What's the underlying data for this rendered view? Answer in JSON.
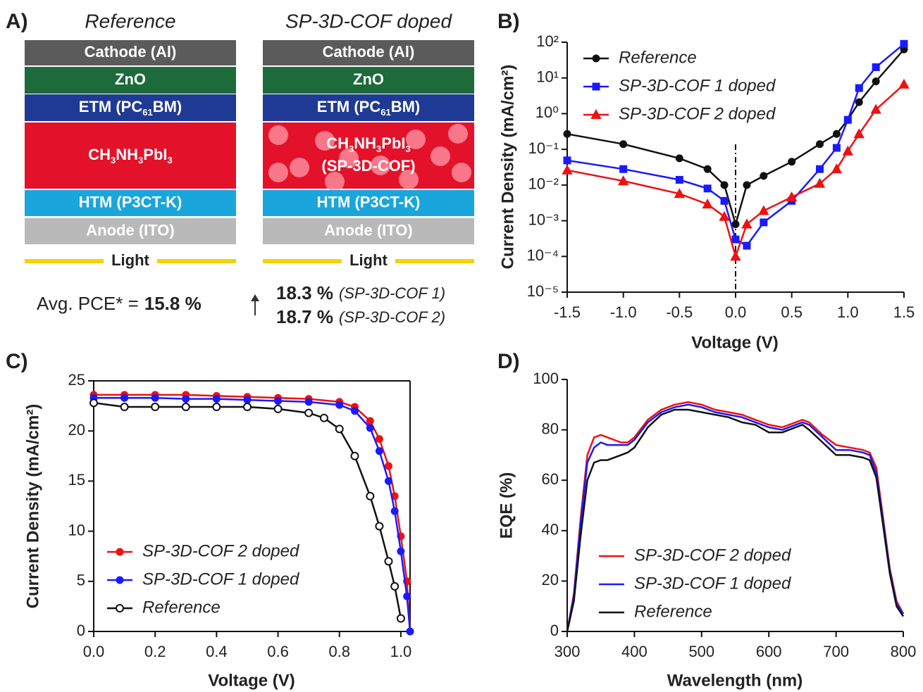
{
  "panel_labels": [
    "A)",
    "B)",
    "C)",
    "D)"
  ],
  "device_diagram": {
    "stacks": [
      {
        "title": "Reference",
        "layers": [
          {
            "color": "#5b5b5b",
            "lines": [
              [
                {
                  "text": "Cathode (Al)"
                }
              ]
            ]
          },
          {
            "color": "#1d6b3a",
            "lines": [
              [
                {
                  "text": "ZnO"
                }
              ]
            ]
          },
          {
            "color": "#1f3a94",
            "lines": [
              [
                {
                  "text": "ETM (PC"
                },
                {
                  "sub": "61"
                },
                {
                  "text": "BM)"
                }
              ]
            ]
          },
          {
            "color": "#e3122a",
            "lines": [
              [
                {
                  "text": "CH"
                },
                {
                  "sub": "3"
                },
                {
                  "text": "NH"
                },
                {
                  "sub": "3"
                },
                {
                  "text": "PbI"
                },
                {
                  "sub": "3"
                }
              ]
            ]
          },
          {
            "color": "#1aa6dd",
            "lines": [
              [
                {
                  "text": "HTM (P3CT-K)"
                }
              ]
            ]
          },
          {
            "color": "#b9b9b9",
            "lines": [
              [
                {
                  "text": "Anode (ITO)"
                }
              ]
            ]
          }
        ],
        "light": {
          "text": "Light",
          "color": "#f7d200",
          "text_color": "#ff7a1a"
        }
      },
      {
        "title": "SP-3D-COF doped",
        "layers": [
          {
            "color": "#5b5b5b",
            "lines": [
              [
                {
                  "text": "Cathode (Al)"
                }
              ]
            ]
          },
          {
            "color": "#1d6b3a",
            "lines": [
              [
                {
                  "text": "ZnO"
                }
              ]
            ]
          },
          {
            "color": "#1f3a94",
            "lines": [
              [
                {
                  "text": "ETM (PC"
                },
                {
                  "sub": "61"
                },
                {
                  "text": "BM)"
                }
              ]
            ]
          },
          {
            "color": "#e3122a",
            "lines": [
              [
                {
                  "text": "CH"
                },
                {
                  "sub": "3"
                },
                {
                  "text": "NH"
                },
                {
                  "sub": "3"
                },
                {
                  "text": "PbI"
                },
                {
                  "sub": "3"
                }
              ],
              [
                {
                  "text": "(SP-3D-COF)"
                }
              ]
            ]
          },
          {
            "color": "#1aa6dd",
            "lines": [
              [
                {
                  "text": "HTM (P3CT-K)"
                }
              ]
            ]
          },
          {
            "color": "#b9b9b9",
            "lines": [
              [
                {
                  "text": "Anode (ITO)"
                }
              ]
            ]
          }
        ],
        "light": {
          "text": "Light",
          "color": "#f7d200",
          "text_color": "#ff7a1a"
        }
      }
    ],
    "pce": {
      "label": "Avg. PCE* =",
      "value": "15.8 %",
      "doped": [
        {
          "value": "18.3 %",
          "name": "(SP-3D-COF 1)"
        },
        {
          "value": "18.7 %",
          "name": "(SP-3D-COF 2)"
        }
      ]
    }
  },
  "chart_data": [
    {
      "type": "line",
      "log_y": true,
      "legend": "upper left",
      "xlabel": "Voltage (V)",
      "ylabel": "Current Density (mA/cm²)",
      "xlim": [
        -1.5,
        1.5
      ],
      "xticks": [
        -1.5,
        {
          "value": -1,
          "label": "-1.0"
        },
        -0.5,
        {
          "value": 0,
          "label": "0.0"
        },
        0.5,
        {
          "value": 1,
          "label": "1.0"
        },
        1.5
      ],
      "ylim": [
        1e-05,
        100
      ],
      "yticks": [
        {
          "value": 1e-05,
          "label": "10⁻⁵"
        },
        {
          "value": 0.0001,
          "label": "10⁻⁴"
        },
        {
          "value": 0.001,
          "label": "10⁻³"
        },
        {
          "value": 0.01,
          "label": "10⁻²"
        },
        {
          "value": 0.1,
          "label": "10⁻¹"
        },
        {
          "value": 1,
          "label": "10⁰"
        },
        {
          "value": 10,
          "label": "10¹"
        },
        {
          "value": 100,
          "label": "10²"
        }
      ],
      "series": [
        {
          "name": "Reference",
          "color": "#111111",
          "marker": "circle",
          "x": [
            -1.5,
            -1,
            -0.5,
            -0.25,
            -0.1,
            0,
            0.1,
            0.25,
            0.5,
            0.75,
            0.9,
            1,
            1.1,
            1.25,
            1.5
          ],
          "values": [
            0.27,
            0.14,
            0.056,
            0.028,
            0.01,
            0.0008,
            0.01,
            0.018,
            0.045,
            0.14,
            0.27,
            0.67,
            2.1,
            8,
            63
          ]
        },
        {
          "name": "SP-3D-COF 1 doped",
          "color": "#1a1aff",
          "marker": "square",
          "x": [
            -1.5,
            -1,
            -0.5,
            -0.25,
            -0.1,
            0,
            0.1,
            0.25,
            0.5,
            0.75,
            0.9,
            1,
            1.1,
            1.25,
            1.5
          ],
          "values": [
            0.049,
            0.028,
            0.014,
            0.008,
            0.0036,
            0.0003,
            0.0002,
            0.0009,
            0.0036,
            0.028,
            0.11,
            0.67,
            5.2,
            20,
            90
          ]
        },
        {
          "name": "SP-3D-COF 2 doped",
          "color": "#ee1111",
          "marker": "triangle",
          "x": [
            -1.5,
            -1,
            -0.5,
            -0.25,
            -0.1,
            0,
            0.1,
            0.25,
            0.5,
            0.75,
            0.9,
            1,
            1.1,
            1.25,
            1.5
          ],
          "values": [
            0.026,
            0.013,
            0.0057,
            0.0029,
            0.0013,
            0.0001,
            0.0008,
            0.0019,
            0.0046,
            0.011,
            0.028,
            0.089,
            0.27,
            1.3,
            6.6
          ]
        }
      ]
    },
    {
      "type": "line",
      "frame": true,
      "legend": "lower left",
      "xlabel": "Voltage (V)",
      "ylabel": "Current Density (mA/cm²)",
      "xlim": [
        0,
        1.03
      ],
      "xticks": [
        {
          "value": 0,
          "label": "0.0"
        },
        0.2,
        0.4,
        0.6,
        0.8,
        {
          "value": 1,
          "label": "1.0"
        }
      ],
      "ylim": [
        0,
        25
      ],
      "yticks": [
        0,
        5,
        10,
        15,
        20,
        25
      ],
      "series": [
        {
          "name": "SP-3D-COF 2 doped",
          "color": "#ee1111",
          "marker": "circle",
          "x": [
            0,
            0.1,
            0.2,
            0.3,
            0.4,
            0.5,
            0.6,
            0.7,
            0.8,
            0.85,
            0.9,
            0.93,
            0.96,
            0.98,
            1,
            1.02,
            1.03
          ],
          "values": [
            23.6,
            23.6,
            23.6,
            23.6,
            23.5,
            23.4,
            23.3,
            23.2,
            22.9,
            22.4,
            21,
            19.2,
            16.5,
            13.5,
            9.5,
            5,
            0
          ]
        },
        {
          "name": "SP-3D-COF 1 doped",
          "color": "#1a1aff",
          "marker": "circle",
          "x": [
            0,
            0.1,
            0.2,
            0.3,
            0.4,
            0.5,
            0.6,
            0.7,
            0.8,
            0.85,
            0.9,
            0.93,
            0.96,
            0.98,
            1,
            1.02,
            1.03
          ],
          "values": [
            23.3,
            23.3,
            23.3,
            23.2,
            23.2,
            23.1,
            23,
            22.9,
            22.6,
            22,
            20.3,
            18,
            15,
            12,
            8,
            3.5,
            0
          ]
        },
        {
          "name": "Reference",
          "color": "#111111",
          "marker": "circle",
          "marker_fill": "open",
          "x": [
            0,
            0.1,
            0.2,
            0.3,
            0.4,
            0.5,
            0.6,
            0.7,
            0.75,
            0.8,
            0.85,
            0.9,
            0.93,
            0.96,
            0.98,
            1
          ],
          "values": [
            22.8,
            22.4,
            22.4,
            22.4,
            22.4,
            22.4,
            22.2,
            21.8,
            21.3,
            20.2,
            17.5,
            13.5,
            10.5,
            7,
            4.5,
            1.3
          ]
        }
      ]
    },
    {
      "type": "line",
      "legend": "lower left",
      "xlabel": "Wavelength (nm)",
      "ylabel": "EQE (%)",
      "xlim": [
        300,
        800
      ],
      "xticks": [
        300,
        400,
        500,
        600,
        700,
        800
      ],
      "ylim": [
        0,
        100
      ],
      "yticks": [
        0,
        20,
        40,
        60,
        80,
        100
      ],
      "series": [
        {
          "name": "SP-3D-COF 2 doped",
          "color": "#ee1111",
          "x": [
            300,
            310,
            320,
            330,
            340,
            350,
            360,
            380,
            390,
            400,
            420,
            440,
            460,
            480,
            500,
            520,
            540,
            560,
            580,
            600,
            620,
            640,
            650,
            660,
            680,
            700,
            720,
            740,
            750,
            760,
            770,
            780,
            790,
            800
          ],
          "values": [
            0,
            15,
            45,
            70,
            77,
            78,
            77,
            75,
            75,
            77,
            84,
            88,
            90,
            91,
            90,
            88,
            87,
            86,
            84,
            82,
            81,
            83,
            84,
            83,
            78,
            74,
            73,
            72,
            71,
            65,
            45,
            25,
            12,
            7
          ]
        },
        {
          "name": "SP-3D-COF 1 doped",
          "color": "#1a1aff",
          "x": [
            300,
            310,
            320,
            330,
            340,
            350,
            360,
            380,
            390,
            400,
            420,
            440,
            460,
            480,
            500,
            520,
            540,
            560,
            580,
            600,
            620,
            640,
            650,
            660,
            680,
            700,
            720,
            740,
            750,
            760,
            770,
            780,
            790,
            800
          ],
          "values": [
            0,
            14,
            43,
            67,
            73,
            75,
            74,
            74,
            74,
            76,
            83,
            87,
            89,
            90,
            89,
            87,
            86,
            85,
            83,
            81,
            80,
            82,
            83,
            82,
            77,
            72,
            72,
            71,
            70,
            63,
            44,
            24,
            11,
            7
          ]
        },
        {
          "name": "Reference",
          "color": "#111111",
          "x": [
            300,
            310,
            320,
            330,
            340,
            350,
            360,
            380,
            390,
            400,
            420,
            440,
            460,
            480,
            500,
            520,
            540,
            560,
            580,
            600,
            620,
            640,
            650,
            660,
            680,
            700,
            720,
            740,
            750,
            760,
            770,
            780,
            790,
            800
          ],
          "values": [
            0,
            12,
            38,
            60,
            67,
            68,
            68,
            70,
            71,
            73,
            81,
            86,
            88,
            88,
            87,
            86,
            85,
            83,
            82,
            79,
            79,
            81,
            82,
            80,
            75,
            70,
            70,
            69,
            68,
            61,
            42,
            23,
            10,
            6
          ]
        }
      ]
    }
  ]
}
